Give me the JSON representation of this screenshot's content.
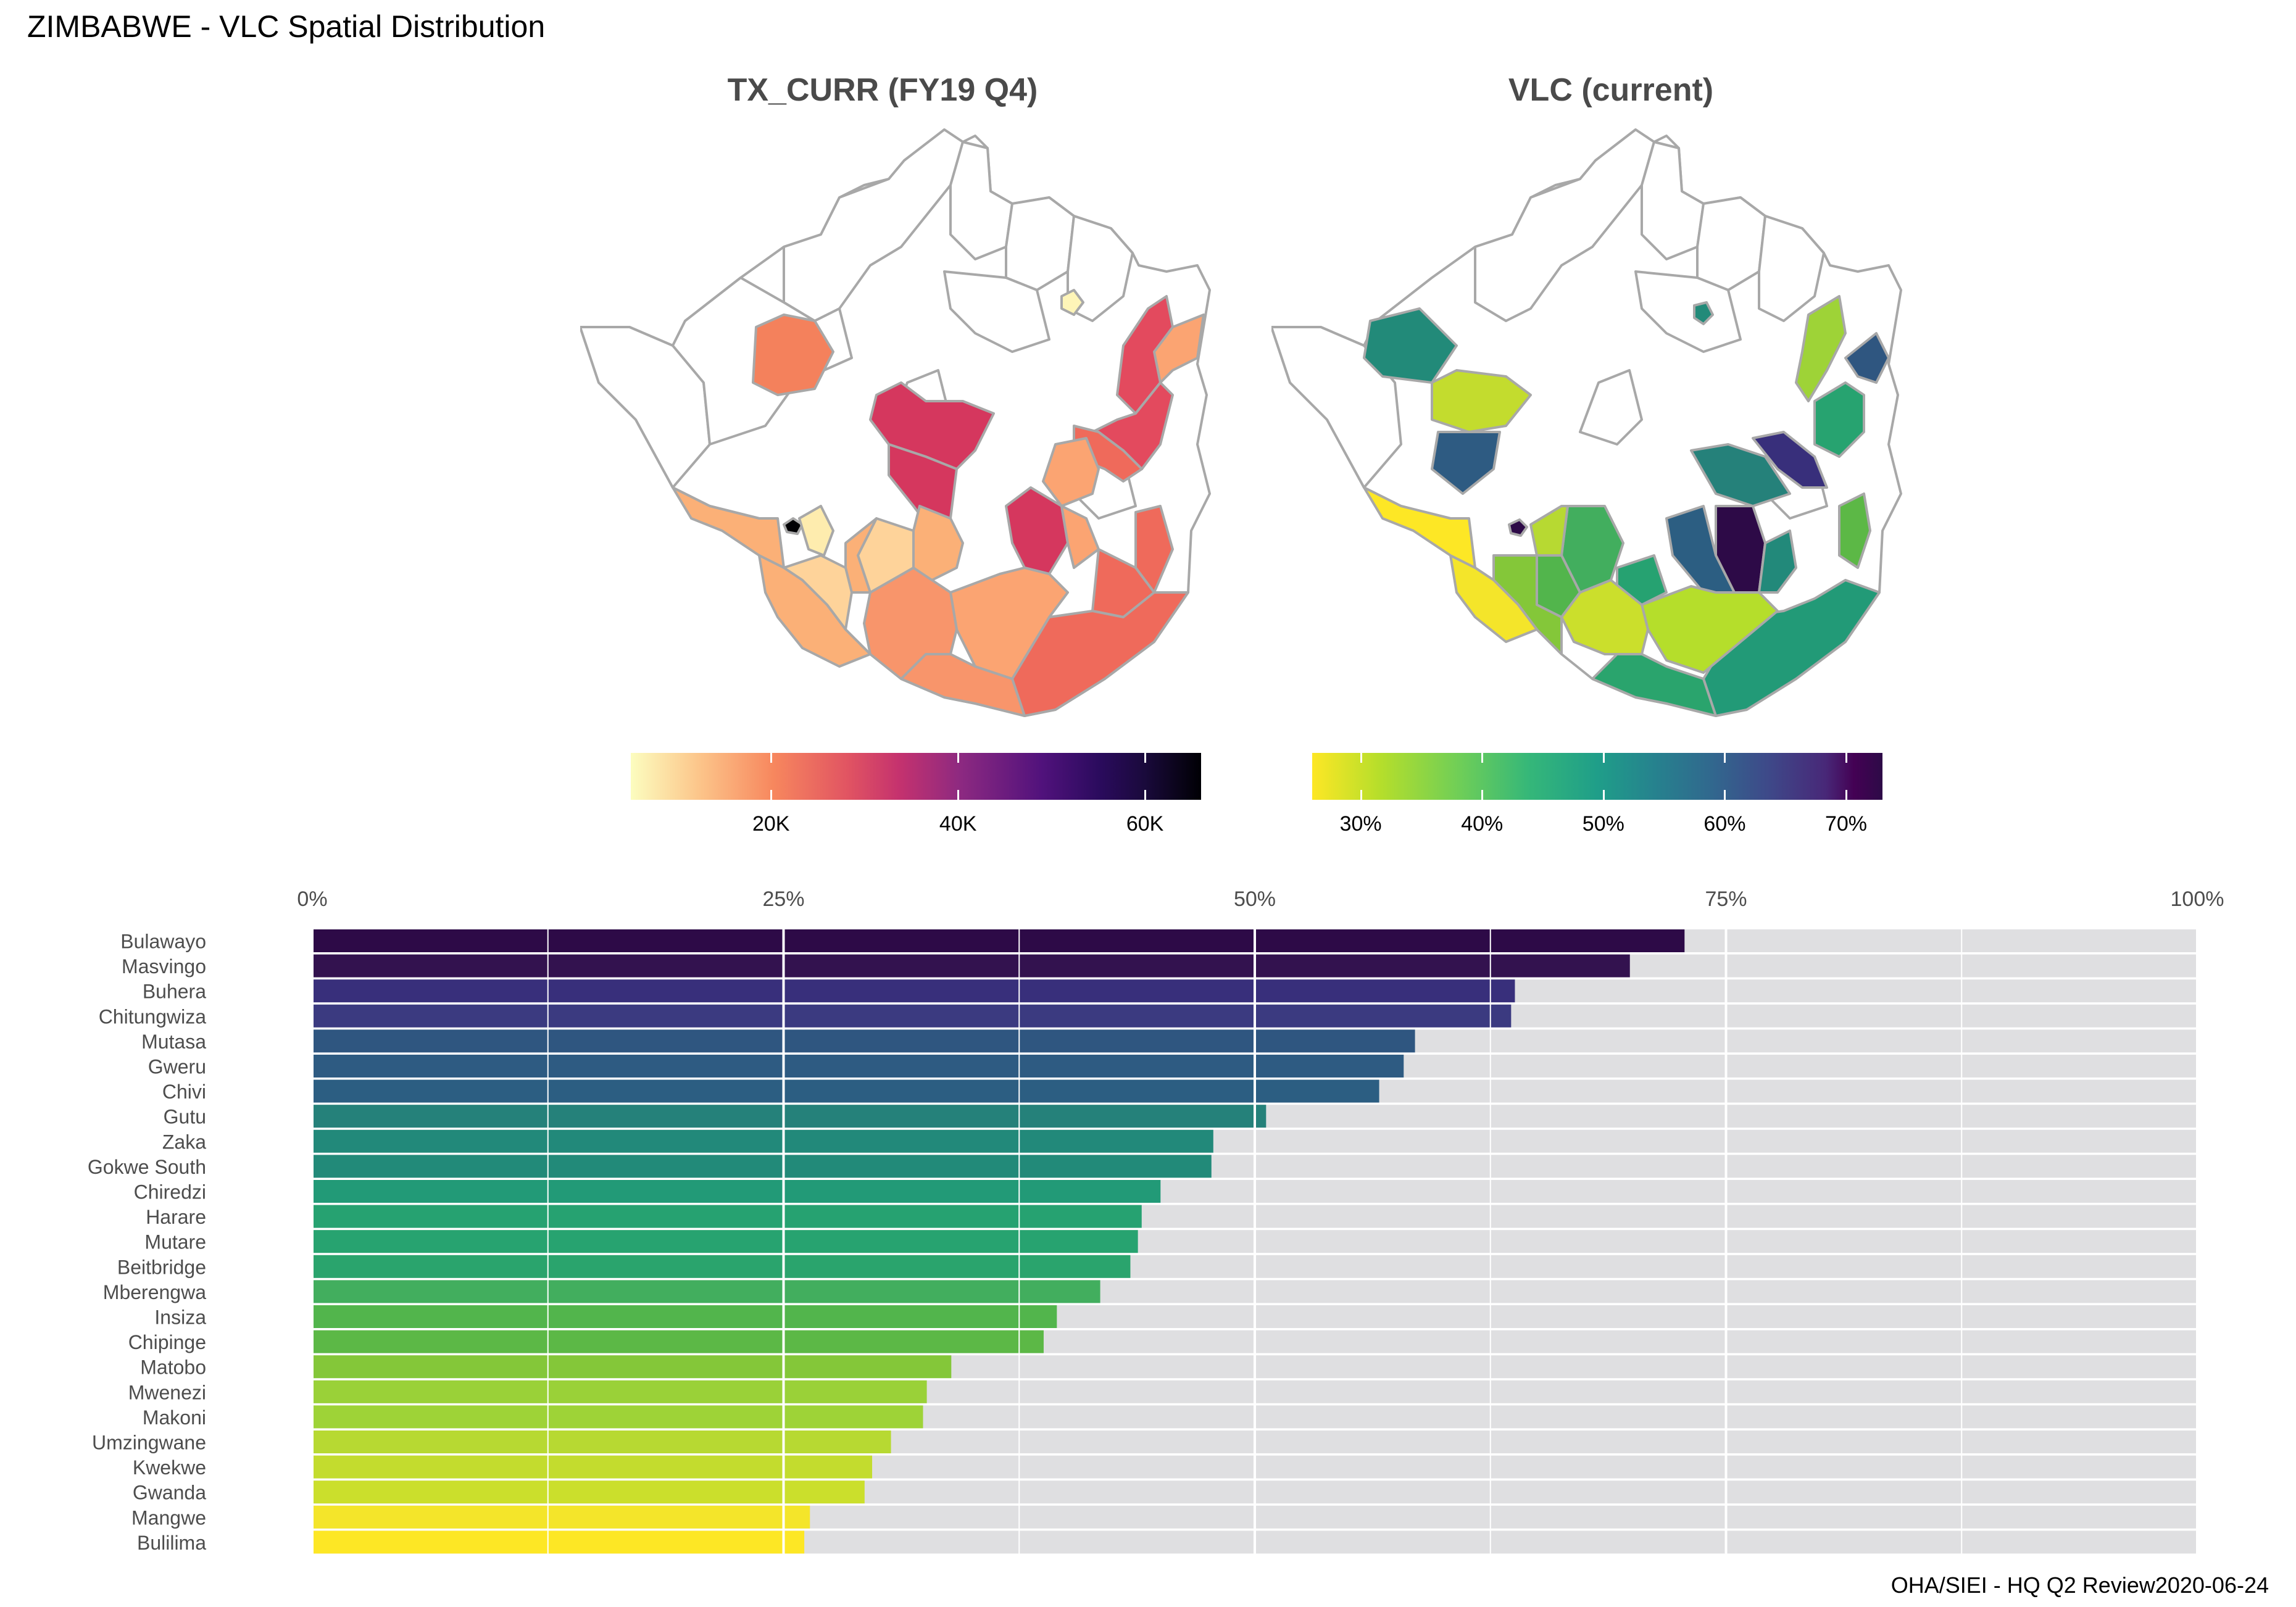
{
  "page": {
    "title": "ZIMBABWE - VLC Spatial Distribution",
    "caption": "OHA/SIEI - HQ Q2 Review2020-06-24"
  },
  "maps": {
    "left": {
      "title": "TX_CURR (FY19 Q4)",
      "legend_ticks": [
        "20K",
        "40K",
        "60K"
      ],
      "legend_values": [
        20000,
        40000,
        60000
      ],
      "legend_range": [
        5000,
        66000
      ],
      "palette": "magma-reversed"
    },
    "right": {
      "title": "VLC (current)",
      "legend_ticks": [
        "30%",
        "40%",
        "50%",
        "60%",
        "70%"
      ],
      "legend_values": [
        0.3,
        0.4,
        0.5,
        0.6,
        0.7
      ],
      "legend_range": [
        0.26,
        0.73
      ],
      "palette": "viridis-reversed"
    }
  },
  "chart_data": {
    "type": "bar",
    "orientation": "horizontal",
    "title": "",
    "xlabel": "",
    "ylabel": "",
    "xlim": [
      0,
      1
    ],
    "x_ticks": [
      "0%",
      "25%",
      "50%",
      "75%",
      "100%"
    ],
    "x_tick_values": [
      0,
      0.25,
      0.5,
      0.75,
      1.0
    ],
    "background_bar_value": 1.0,
    "grid": true,
    "categories": [
      "Bulawayo",
      "Masvingo",
      "Buhera",
      "Chitungwiza",
      "Mutasa",
      "Gweru",
      "Chivi",
      "Gutu",
      "Zaka",
      "Gokwe South",
      "Chiredzi",
      "Harare",
      "Mutare",
      "Beitbridge",
      "Mberengwa",
      "Insiza",
      "Chipinge",
      "Matobo",
      "Mwenezi",
      "Makoni",
      "Umzingwane",
      "Kwekwe",
      "Gwanda",
      "Mangwe",
      "Bulilima"
    ],
    "values": [
      0.728,
      0.699,
      0.638,
      0.636,
      0.585,
      0.579,
      0.566,
      0.506,
      0.478,
      0.477,
      0.45,
      0.44,
      0.438,
      0.434,
      0.418,
      0.395,
      0.388,
      0.339,
      0.326,
      0.324,
      0.307,
      0.297,
      0.293,
      0.264,
      0.261
    ],
    "colors": [
      "#2d0a47",
      "#33124f",
      "#382f7b",
      "#3b3a80",
      "#2f5680",
      "#2e5b82",
      "#2c5e82",
      "#25817a",
      "#22897a",
      "#228a79",
      "#229a77",
      "#26a271",
      "#27a370",
      "#2aa46d",
      "#42ae5e",
      "#52b54c",
      "#5cb846",
      "#84c739",
      "#9ad138",
      "#9ed337",
      "#b7d932",
      "#c3dc2e",
      "#cbdf2c",
      "#f4e52a",
      "#fde725"
    ]
  }
}
